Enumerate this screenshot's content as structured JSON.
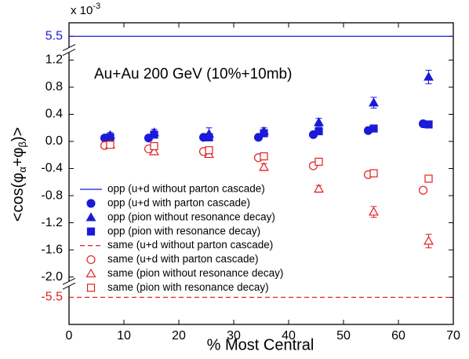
{
  "chart_data": {
    "type": "scatter",
    "annotation": "Au+Au 200 GeV (10%+10mb)",
    "multiplier": [
      "x 10",
      "-3"
    ],
    "ylabel": [
      "<cos(φ",
      "α",
      "+φ",
      "β",
      ")>"
    ],
    "xlabel": "% Most Central",
    "xlim": [
      0,
      70
    ],
    "xticks": [
      0,
      10,
      20,
      30,
      40,
      50,
      60,
      70
    ],
    "ylim": [
      -5.9,
      5.7
    ],
    "y_breaks": [
      [
        -5.3,
        -2.1
      ],
      [
        1.35,
        5.3
      ]
    ],
    "yticks": [
      -5.5,
      {
        "value": -2.0,
        "label": "-2.0"
      },
      -1.6,
      -1.2,
      -0.8,
      -0.4,
      {
        "value": 0,
        "label": "0.0"
      },
      0.4,
      0.8,
      1.2,
      5.5
    ],
    "legend": "left",
    "series": [
      {
        "name": "opp (u+d without parton cascade)",
        "kind": "hline",
        "color": "#1a1ad8",
        "dashed": false,
        "value": 5.5
      },
      {
        "name": "opp (u+d with parton cascade)",
        "kind": "points",
        "marker": "circle",
        "filled": true,
        "color": "#1a1ad8",
        "x": [
          6.5,
          14.5,
          24.5,
          34.5,
          44.5,
          54.5,
          64.5
        ],
        "values": [
          0.05,
          0.05,
          0.06,
          0.06,
          0.1,
          0.16,
          0.26
        ]
      },
      {
        "name": "opp (pion without resonance decay)",
        "kind": "points",
        "marker": "triangle",
        "filled": true,
        "color": "#1a1ad8",
        "x": [
          7.5,
          15.5,
          25.5,
          35.5,
          45.5,
          55.5,
          65.5
        ],
        "values": [
          0.09,
          0.13,
          0.11,
          0.15,
          0.28,
          0.57,
          0.95
        ],
        "errors": [
          0.04,
          0.05,
          0.09,
          0.05,
          0.06,
          0.08,
          0.1
        ]
      },
      {
        "name": "opp (pion with resonance decay)",
        "kind": "points",
        "marker": "square",
        "filled": true,
        "color": "#1a1ad8",
        "x": [
          7.5,
          15.5,
          25.5,
          35.5,
          45.5,
          55.5,
          65.5
        ],
        "values": [
          0.06,
          0.1,
          0.06,
          0.12,
          0.15,
          0.19,
          0.25
        ]
      },
      {
        "name": "same (u+d without parton cascade)",
        "kind": "hline",
        "color": "#e02020",
        "dashed": true,
        "value": -5.5
      },
      {
        "name": "same (u+d with parton cascade)",
        "kind": "points",
        "marker": "circle",
        "filled": false,
        "color": "#e02020",
        "x": [
          6.5,
          14.5,
          24.5,
          34.5,
          44.5,
          54.5,
          64.5
        ],
        "values": [
          -0.06,
          -0.11,
          -0.15,
          -0.24,
          -0.36,
          -0.49,
          -0.72
        ]
      },
      {
        "name": "same (pion without resonance decay)",
        "kind": "points",
        "marker": "triangle",
        "filled": false,
        "color": "#e02020",
        "x": [
          7.5,
          15.5,
          25.5,
          35.5,
          45.5,
          55.5,
          65.5
        ],
        "values": [
          -0.05,
          -0.15,
          -0.19,
          -0.38,
          -0.7,
          -1.04,
          -1.47
        ],
        "errors": [
          0.03,
          0.04,
          0.04,
          0.05,
          0.05,
          0.08,
          0.1
        ]
      },
      {
        "name": "same (pion with resonance decay)",
        "kind": "points",
        "marker": "square",
        "filled": false,
        "color": "#e02020",
        "x": [
          7.5,
          15.5,
          25.5,
          35.5,
          45.5,
          55.5,
          65.5
        ],
        "values": [
          -0.05,
          -0.07,
          -0.13,
          -0.22,
          -0.3,
          -0.47,
          -0.55
        ]
      }
    ]
  }
}
